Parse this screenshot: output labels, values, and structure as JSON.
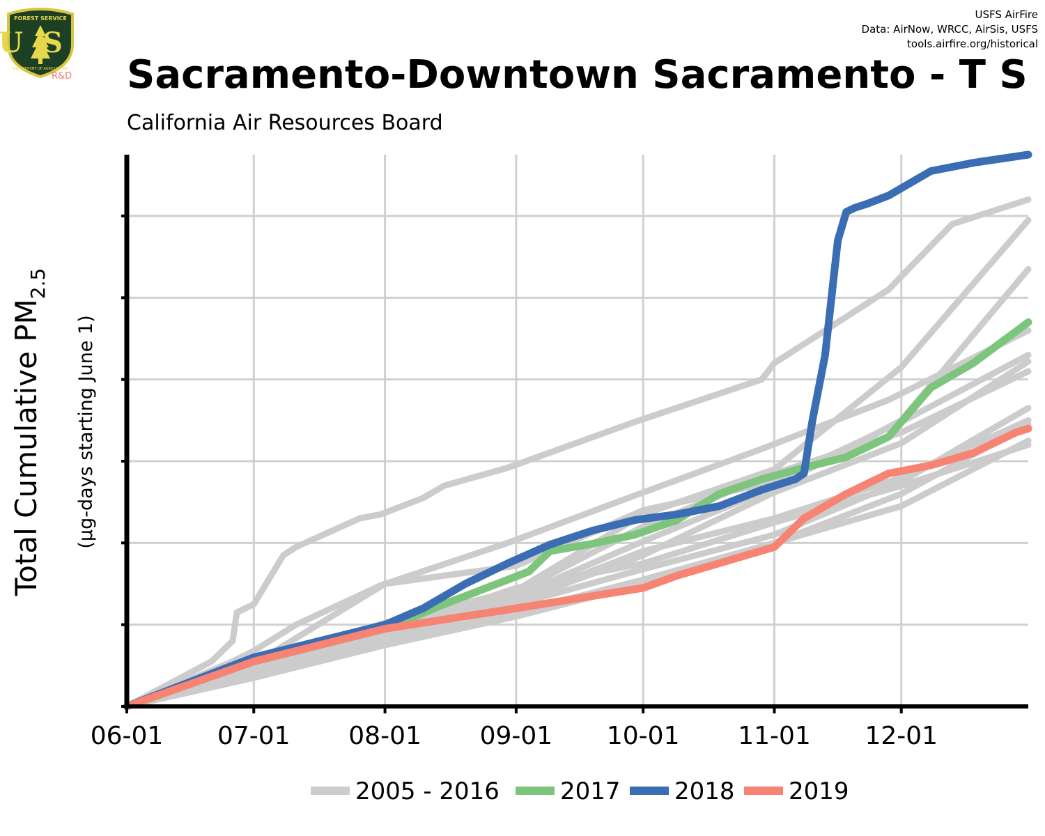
{
  "header": {
    "credits": [
      "USFS AirFire",
      "Data: AirNow, WRCC, AirSis, USFS",
      "tools.airfire.org/historical"
    ],
    "logo": {
      "top_text": "FOREST SERVICE",
      "letters": "US",
      "bottom_text": "DEPARTMENT OF AGRICULTURE",
      "tag": "R&D",
      "colors": {
        "shield": "#1d3f24",
        "border": "#d8c640",
        "text": "#e6d84c",
        "tag": "#f08070"
      }
    }
  },
  "title": "Sacramento-Downtown Sacramento - T S",
  "subtitle": "California Air Resources Board",
  "colors": {
    "history": "#cccccc",
    "y2017": "#7dc57c",
    "y2018": "#3a6db3",
    "y2019": "#f78373",
    "grid": "#d0d0d0",
    "axis": "#000000"
  },
  "chart_data": {
    "type": "line",
    "title": "Sacramento-Downtown Sacramento - T S",
    "subtitle": "California Air Resources Board",
    "ylabel": "Total Cumulative PM",
    "ylabel_subscript": "2.5",
    "ylabel_unit": "(µg-days starting June 1)",
    "x_ticks": [
      "06-01",
      "07-01",
      "08-01",
      "09-01",
      "10-01",
      "11-01",
      "12-01"
    ],
    "x_tick_days": [
      0,
      30,
      61,
      92,
      122,
      153,
      183
    ],
    "xlim": [
      0,
      213
    ],
    "ylim": [
      0,
      6.75
    ],
    "y_gridlines": [
      1,
      2,
      3,
      4,
      5,
      6
    ],
    "y_tick_labels_shown": false,
    "grid": true,
    "legend_position": "bottom",
    "legend": [
      "2005 - 2016",
      "2017",
      "2018",
      "2019"
    ],
    "series": [
      {
        "name": "2005 - 2016",
        "color": "#cccccc",
        "x": [
          0,
          25,
          30,
          40,
          60,
          90,
          120,
          150,
          180,
          213
        ],
        "y": [
          0,
          0.55,
          0.68,
          1.0,
          1.48,
          2.0,
          2.58,
          3.15,
          3.75,
          4.6
        ]
      },
      {
        "color": "#cccccc",
        "x": [
          0,
          20,
          25,
          26,
          30,
          37,
          40,
          55,
          60,
          70,
          75,
          90,
          120,
          150,
          153,
          180,
          195,
          213
        ],
        "y": [
          0,
          0.55,
          0.8,
          1.15,
          1.25,
          1.85,
          1.95,
          2.3,
          2.35,
          2.55,
          2.7,
          2.92,
          3.48,
          4.0,
          4.2,
          5.1,
          5.9,
          6.2
        ]
      },
      {
        "color": "#cccccc",
        "x": [
          0,
          30,
          61,
          92,
          122,
          153,
          183,
          213
        ],
        "y": [
          0,
          0.55,
          1.02,
          1.42,
          2.35,
          2.9,
          4.15,
          5.95
        ]
      },
      {
        "color": "#cccccc",
        "x": [
          0,
          30,
          61,
          92,
          122,
          153,
          183,
          213
        ],
        "y": [
          0,
          0.48,
          0.95,
          1.35,
          2.02,
          2.68,
          3.5,
          5.35
        ]
      },
      {
        "color": "#cccccc",
        "x": [
          0,
          30,
          61,
          92,
          122,
          153,
          183,
          213
        ],
        "y": [
          0,
          0.4,
          0.82,
          1.28,
          1.85,
          2.62,
          3.22,
          4.22
        ]
      },
      {
        "color": "#cccccc",
        "x": [
          0,
          30,
          61,
          92,
          122,
          153,
          183,
          213
        ],
        "y": [
          0,
          0.52,
          1.5,
          1.72,
          2.4,
          2.75,
          3.48,
          4.3
        ]
      },
      {
        "color": "#cccccc",
        "x": [
          0,
          30,
          61,
          92,
          122,
          153,
          183,
          213
        ],
        "y": [
          0,
          0.5,
          1.0,
          1.4,
          2.2,
          2.85,
          3.35,
          4.1
        ]
      },
      {
        "color": "#cccccc",
        "x": [
          0,
          30,
          61,
          92,
          122,
          153,
          183,
          213
        ],
        "y": [
          0,
          0.45,
          0.95,
          1.3,
          1.9,
          2.3,
          2.8,
          3.5
        ]
      },
      {
        "color": "#cccccc",
        "x": [
          0,
          30,
          61,
          92,
          122,
          153,
          183,
          213
        ],
        "y": [
          0,
          0.45,
          0.9,
          1.45,
          1.75,
          2.25,
          2.7,
          3.2
        ]
      },
      {
        "color": "#cccccc",
        "x": [
          0,
          30,
          61,
          92,
          122,
          153,
          183,
          213
        ],
        "y": [
          0,
          0.42,
          0.9,
          1.25,
          1.68,
          2.1,
          2.75,
          3.65
        ]
      },
      {
        "color": "#cccccc",
        "x": [
          0,
          30,
          61,
          92,
          122,
          153,
          183,
          213
        ],
        "y": [
          0,
          0.38,
          0.8,
          1.15,
          1.55,
          2.0,
          2.6,
          3.45
        ]
      },
      {
        "color": "#cccccc",
        "x": [
          0,
          30,
          61,
          92,
          122,
          153,
          183,
          213
        ],
        "y": [
          0,
          0.35,
          0.75,
          1.1,
          1.5,
          2.0,
          2.45,
          3.25
        ]
      },
      {
        "name": "2017",
        "color": "#7dc57c",
        "x": [
          0,
          30,
          61,
          75,
          85,
          90,
          95,
          100,
          110,
          120,
          130,
          140,
          150,
          160,
          170,
          180,
          190,
          200,
          213
        ],
        "y": [
          0,
          0.55,
          0.95,
          1.25,
          1.45,
          1.55,
          1.65,
          1.9,
          1.99,
          2.1,
          2.28,
          2.6,
          2.78,
          2.92,
          3.05,
          3.3,
          3.9,
          4.2,
          4.7
        ]
      },
      {
        "name": "2018",
        "color": "#3a6db3",
        "x": [
          0,
          30,
          61,
          70,
          80,
          90,
          100,
          110,
          120,
          130,
          140,
          150,
          158,
          160,
          162,
          165,
          168,
          170,
          172,
          175,
          180,
          190,
          195,
          200,
          213
        ],
        "y": [
          0,
          0.6,
          1.0,
          1.2,
          1.5,
          1.75,
          1.98,
          2.15,
          2.28,
          2.35,
          2.45,
          2.65,
          2.78,
          2.85,
          3.5,
          4.3,
          5.7,
          6.05,
          6.1,
          6.15,
          6.25,
          6.55,
          6.6,
          6.65,
          6.75
        ]
      },
      {
        "name": "2019",
        "color": "#f78373",
        "x": [
          0,
          30,
          61,
          92,
          122,
          130,
          153,
          160,
          170,
          180,
          190,
          200,
          210,
          213
        ],
        "y": [
          0,
          0.55,
          0.95,
          1.2,
          1.45,
          1.6,
          1.95,
          2.3,
          2.6,
          2.85,
          2.95,
          3.1,
          3.35,
          3.4
        ]
      }
    ]
  }
}
